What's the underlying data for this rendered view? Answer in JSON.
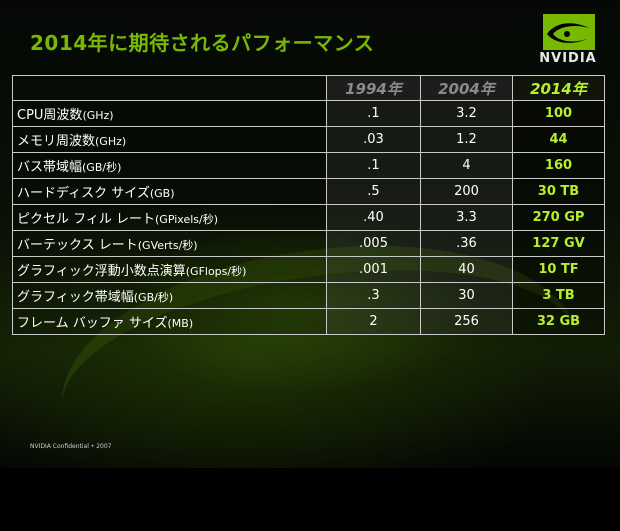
{
  "slide": {
    "title": "2014年に期待されるパフォーマンス",
    "logo_text": "NVIDIA",
    "logo_icon": "nvidia-eye-logo",
    "footer": "NVIDIA Confidential • 2007",
    "colors": {
      "accent": "#76b900",
      "highlight": "#b8ee30",
      "border": "#c9c9c9"
    }
  },
  "table": {
    "headers": [
      "",
      "1994年",
      "2004年",
      "2014年"
    ],
    "rows": [
      {
        "label": "CPU周波数",
        "unit": "(GHz)",
        "v1994": ".1",
        "v2004": "3.2",
        "v2014": "100"
      },
      {
        "label": "メモリ周波数",
        "unit": "(GHz)",
        "v1994": ".03",
        "v2004": "1.2",
        "v2014": "44"
      },
      {
        "label": "バス帯域幅",
        "unit": "(GB/秒)",
        "v1994": ".1",
        "v2004": "4",
        "v2014": "160"
      },
      {
        "label": "ハードディスク サイズ",
        "unit": "(GB)",
        "v1994": ".5",
        "v2004": "200",
        "v2014": "30 TB"
      },
      {
        "label": "ピクセル フィル レート",
        "unit": "(GPixels/秒)",
        "v1994": ".40",
        "v2004": "3.3",
        "v2014": "270 GP"
      },
      {
        "label": "バーテックス レート",
        "unit": "(GVerts/秒)",
        "v1994": ".005",
        "v2004": ".36",
        "v2014": "127 GV"
      },
      {
        "label": "グラフィック浮動小数点演算",
        "unit": "(GFlops/秒)",
        "v1994": ".001",
        "v2004": "40",
        "v2014": "10 TF"
      },
      {
        "label": "グラフィック帯域幅",
        "unit": "(GB/秒)",
        "v1994": ".3",
        "v2004": "30",
        "v2014": "3 TB"
      },
      {
        "label": "フレーム バッファ サイズ",
        "unit": "(MB)",
        "v1994": "2",
        "v2004": "256",
        "v2014": "32 GB"
      }
    ]
  }
}
